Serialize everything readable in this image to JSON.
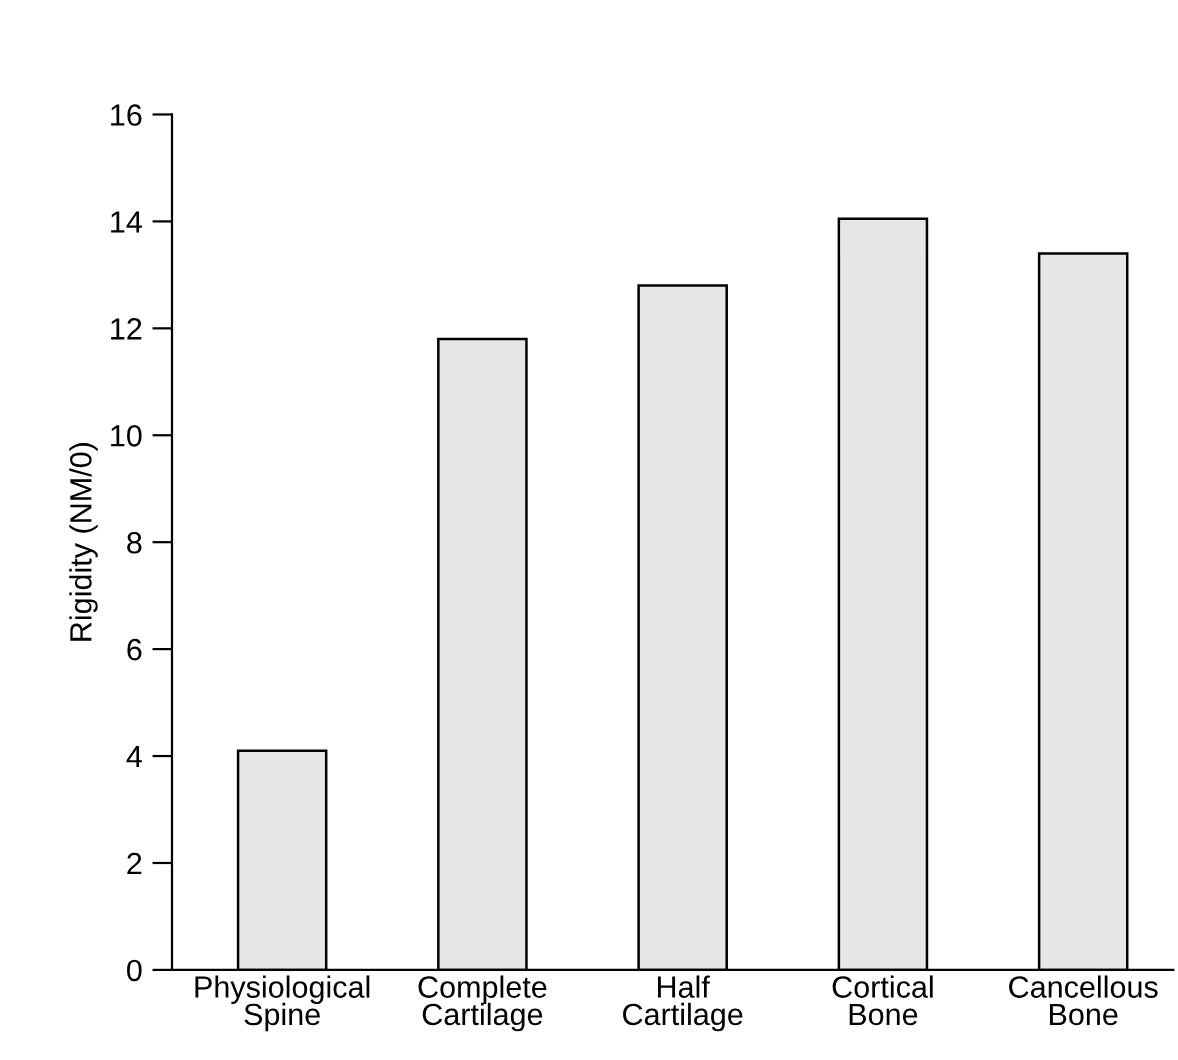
{
  "chart_data": {
    "type": "bar",
    "ylabel": "Rigidity (NM/0)",
    "categories": [
      "Physiological\nSpine",
      "Complete\nCartilage",
      "Half\nCartilage",
      "Cortical\nBone",
      "Cancellous\nBone"
    ],
    "values": [
      4.1,
      11.8,
      12.8,
      14.05,
      13.4
    ],
    "color": "#e6e6e6",
    "ylim": [
      0,
      16
    ],
    "yticks": [
      0,
      2,
      4,
      6,
      8,
      10,
      12,
      14,
      16
    ],
    "grid": false
  }
}
